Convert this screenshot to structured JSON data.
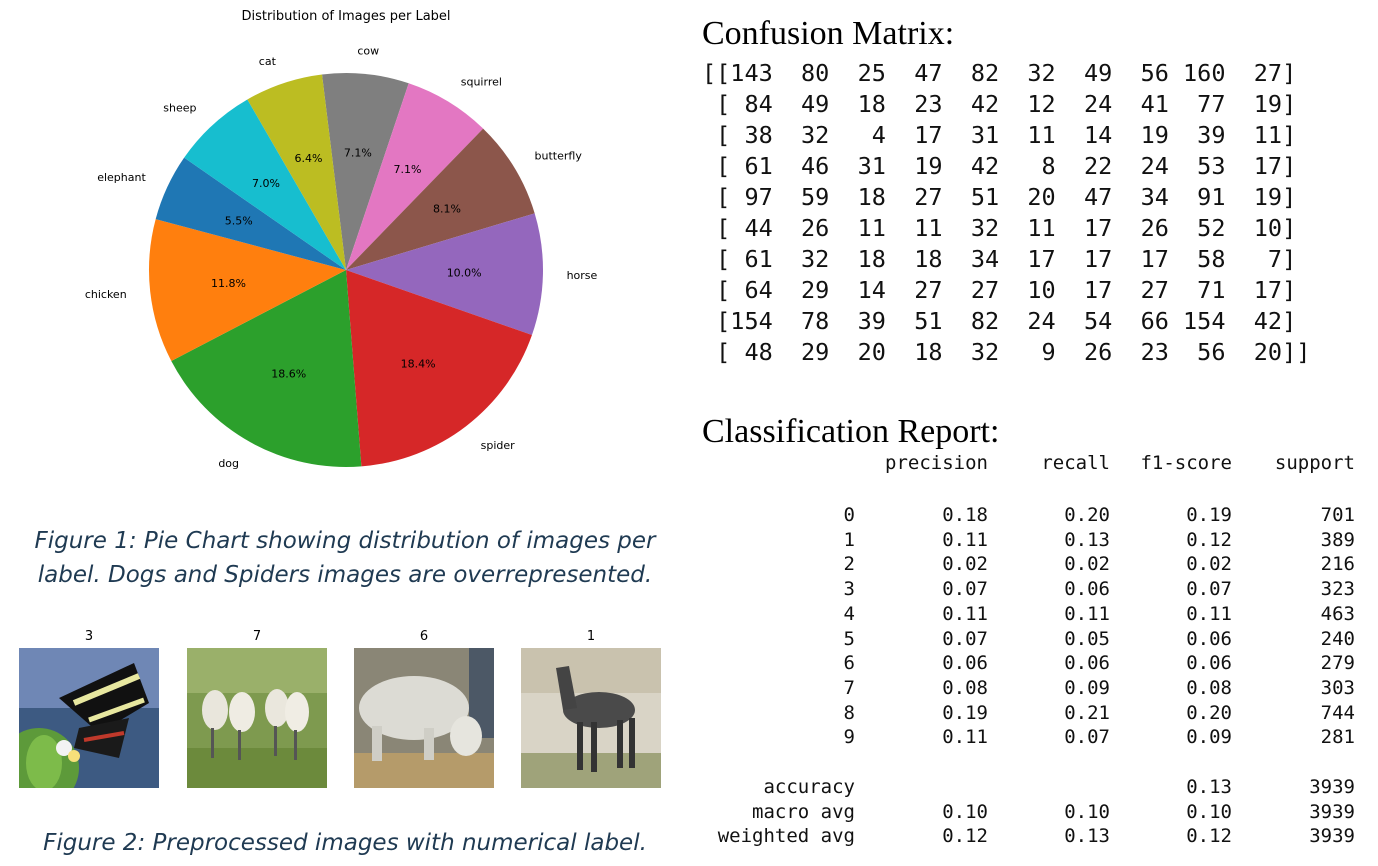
{
  "chart_data": {
    "type": "pie",
    "title": "Distribution of Images per Label",
    "slices": [
      {
        "label": "cow",
        "value": 7.1,
        "pct_label": "7.1%",
        "color": "#7f7f7f"
      },
      {
        "label": "squirrel",
        "value": 7.1,
        "pct_label": "7.1%",
        "color": "#e377c2"
      },
      {
        "label": "butterfly",
        "value": 8.1,
        "pct_label": "8.1%",
        "color": "#8c564b"
      },
      {
        "label": "horse",
        "value": 10.0,
        "pct_label": "10.0%",
        "color": "#9467bd"
      },
      {
        "label": "spider",
        "value": 18.4,
        "pct_label": "18.4%",
        "color": "#d62728"
      },
      {
        "label": "dog",
        "value": 18.6,
        "pct_label": "18.6%",
        "color": "#2ca02c"
      },
      {
        "label": "chicken",
        "value": 11.8,
        "pct_label": "11.8%",
        "color": "#ff7f0e"
      },
      {
        "label": "elephant",
        "value": 5.5,
        "pct_label": "5.5%",
        "color": "#1f77b4"
      },
      {
        "label": "sheep",
        "value": 7.0,
        "pct_label": "7.0%",
        "color": "#17becf"
      },
      {
        "label": "cat",
        "value": 6.4,
        "pct_label": "6.4%",
        "color": "#bcbd22"
      }
    ]
  },
  "figure1_caption_line1": "Figure 1: Pie Chart showing distribution of images per",
  "figure1_caption_line2": "label. Dogs and Spiders images are overrepresented.",
  "figure2_caption": "Figure 2: Preprocessed images with numerical label.",
  "thumbnails": [
    {
      "label": "3",
      "subject": "butterfly"
    },
    {
      "label": "7",
      "subject": "sheep"
    },
    {
      "label": "6",
      "subject": "cow"
    },
    {
      "label": "1",
      "subject": "horse"
    }
  ],
  "confusion_matrix": {
    "title": "Confusion Matrix:",
    "rows": [
      "[[143  80  25  47  82  32  49  56 160  27]",
      " [ 84  49  18  23  42  12  24  41  77  19]",
      " [ 38  32   4  17  31  11  14  19  39  11]",
      " [ 61  46  31  19  42   8  22  24  53  17]",
      " [ 97  59  18  27  51  20  47  34  91  19]",
      " [ 44  26  11  11  32  11  17  26  52  10]",
      " [ 61  32  18  18  34  17  17  17  58   7]",
      " [ 64  29  14  27  27  10  17  27  71  17]",
      " [154  78  39  51  82  24  54  66 154  42]",
      " [ 48  29  20  18  32   9  26  23  56  20]]"
    ]
  },
  "classification_report": {
    "title": "Classification Report:",
    "headers": [
      "precision",
      "recall",
      "f1-score",
      "support"
    ],
    "rows": [
      {
        "label": "0",
        "precision": "0.18",
        "recall": "0.20",
        "f1": "0.19",
        "support": "701"
      },
      {
        "label": "1",
        "precision": "0.11",
        "recall": "0.13",
        "f1": "0.12",
        "support": "389"
      },
      {
        "label": "2",
        "precision": "0.02",
        "recall": "0.02",
        "f1": "0.02",
        "support": "216"
      },
      {
        "label": "3",
        "precision": "0.07",
        "recall": "0.06",
        "f1": "0.07",
        "support": "323"
      },
      {
        "label": "4",
        "precision": "0.11",
        "recall": "0.11",
        "f1": "0.11",
        "support": "463"
      },
      {
        "label": "5",
        "precision": "0.07",
        "recall": "0.05",
        "f1": "0.06",
        "support": "240"
      },
      {
        "label": "6",
        "precision": "0.06",
        "recall": "0.06",
        "f1": "0.06",
        "support": "279"
      },
      {
        "label": "7",
        "precision": "0.08",
        "recall": "0.09",
        "f1": "0.08",
        "support": "303"
      },
      {
        "label": "8",
        "precision": "0.19",
        "recall": "0.21",
        "f1": "0.20",
        "support": "744"
      },
      {
        "label": "9",
        "precision": "0.11",
        "recall": "0.07",
        "f1": "0.09",
        "support": "281"
      }
    ],
    "summary": [
      {
        "label": "accuracy",
        "precision": "",
        "recall": "",
        "f1": "0.13",
        "support": "3939"
      },
      {
        "label": "macro avg",
        "precision": "0.10",
        "recall": "0.10",
        "f1": "0.10",
        "support": "3939"
      },
      {
        "label": "weighted avg",
        "precision": "0.12",
        "recall": "0.13",
        "f1": "0.12",
        "support": "3939"
      }
    ]
  }
}
